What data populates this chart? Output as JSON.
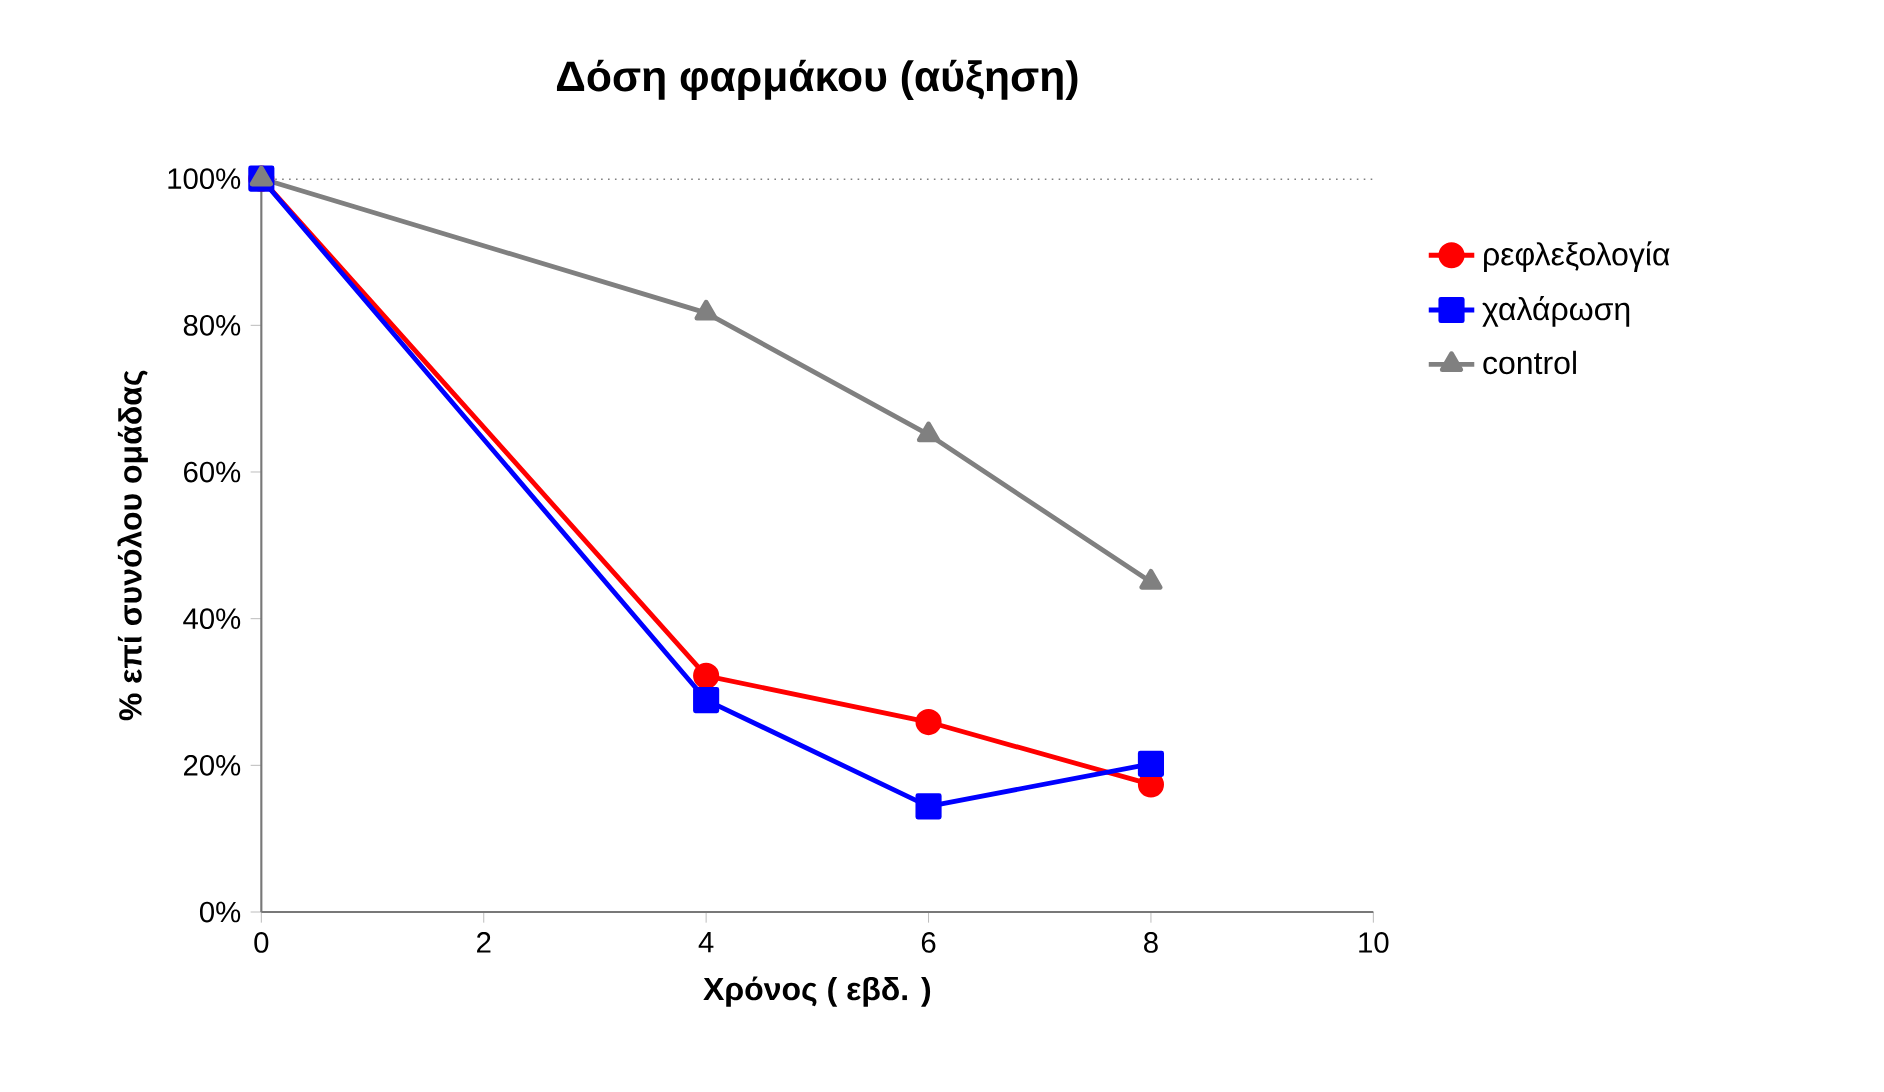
{
  "chart_data": {
    "type": "line",
    "title": "Δόση φαρμάκου (αύξηση)",
    "xlabel": "Χρόνος ( εβδ. )",
    "ylabel": "% επί συνόλου ομάδας",
    "x": [
      0,
      4,
      6,
      8
    ],
    "xlim": [
      0,
      10
    ],
    "xticks": [
      0,
      2,
      4,
      6,
      8,
      10
    ],
    "ylim": [
      0,
      100
    ],
    "yticks": [
      {
        "value": 0,
        "label": "0%"
      },
      {
        "value": 20,
        "label": "20%"
      },
      {
        "value": 40,
        "label": "40%"
      },
      {
        "value": 60,
        "label": "60%"
      },
      {
        "value": 80,
        "label": "80%"
      },
      {
        "value": 100,
        "label": "100%"
      }
    ],
    "legend": "right",
    "line_style": "solid",
    "series": [
      {
        "name": "ρεφλεξολογία",
        "color": "#ff0000",
        "marker": "circle",
        "values": [
          100,
          32.2,
          25.9,
          17.4
        ]
      },
      {
        "name": "χαλάρωση",
        "color": "#0000ff",
        "marker": "square",
        "values": [
          100,
          28.9,
          14.4,
          20.2
        ]
      },
      {
        "name": "control",
        "color": "#808080",
        "marker": "triangle",
        "values": [
          100,
          81.7,
          65.1,
          45.0
        ]
      }
    ],
    "ref_lines": [
      {
        "axis": "y",
        "value": 100,
        "color": "#000000",
        "line_style": "dotted"
      }
    ]
  }
}
